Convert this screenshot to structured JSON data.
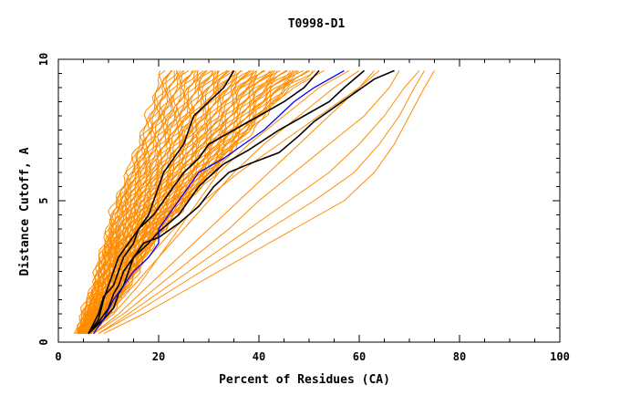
{
  "chart_data": {
    "type": "line",
    "title": "T0998-D1",
    "xlabel": "Percent of Residues (CA)",
    "ylabel": "Distance Cutoff, A",
    "xlim": [
      0,
      100
    ],
    "ylim": [
      0,
      10
    ],
    "x_ticks": [
      "0",
      "20",
      "40",
      "60",
      "80",
      "100"
    ],
    "y_ticks": [
      "0",
      "5",
      "10"
    ],
    "grid": false,
    "legend": "none",
    "colors": {
      "models": "#ff8c00",
      "highlight_black": "#000000",
      "highlight_blue": "#0000ff"
    },
    "band": {
      "color": "#ff8c00",
      "count": 70,
      "left_edge": [
        [
          4,
          0.3
        ],
        [
          5,
          1.0
        ],
        [
          7,
          2.0
        ],
        [
          8.5,
          3.0
        ],
        [
          10,
          4.0
        ],
        [
          11.5,
          5.0
        ],
        [
          14,
          6.0
        ],
        [
          16,
          7.0
        ],
        [
          18,
          8.0
        ],
        [
          19.5,
          9.0
        ],
        [
          21,
          9.6
        ]
      ],
      "right_edge": [
        [
          6,
          0.3
        ],
        [
          10,
          1.0
        ],
        [
          14,
          2.0
        ],
        [
          17,
          3.0
        ],
        [
          21,
          4.0
        ],
        [
          26,
          5.0
        ],
        [
          31,
          6.0
        ],
        [
          36,
          7.0
        ],
        [
          41,
          8.0
        ],
        [
          46,
          9.0
        ],
        [
          51,
          9.6
        ]
      ]
    },
    "series": [
      {
        "color": "#ff8c00",
        "points": [
          [
            6,
            0.3
          ],
          [
            11,
            1
          ],
          [
            16,
            2
          ],
          [
            20,
            3
          ],
          [
            24,
            4
          ],
          [
            28,
            5
          ],
          [
            32,
            6
          ],
          [
            38,
            7
          ],
          [
            45,
            8
          ],
          [
            52,
            9
          ],
          [
            58,
            9.6
          ]
        ]
      },
      {
        "color": "#ff8c00",
        "points": [
          [
            6,
            0.3
          ],
          [
            10,
            1
          ],
          [
            15,
            2
          ],
          [
            20,
            3
          ],
          [
            25,
            4
          ],
          [
            30,
            5
          ],
          [
            35,
            6
          ],
          [
            41,
            7
          ],
          [
            48,
            8
          ],
          [
            55,
            9
          ],
          [
            60,
            9.6
          ]
        ]
      },
      {
        "color": "#ff8c00",
        "points": [
          [
            7,
            0.3
          ],
          [
            12,
            1
          ],
          [
            18,
            2
          ],
          [
            24,
            3
          ],
          [
            30,
            4
          ],
          [
            36,
            5
          ],
          [
            42,
            6
          ],
          [
            48,
            7
          ],
          [
            54,
            8
          ],
          [
            60,
            9
          ],
          [
            63,
            9.6
          ]
        ]
      },
      {
        "color": "#ff8c00",
        "points": [
          [
            7,
            0.3
          ],
          [
            13,
            1
          ],
          [
            20,
            2
          ],
          [
            27,
            3
          ],
          [
            34,
            4
          ],
          [
            40,
            5
          ],
          [
            47,
            6
          ],
          [
            54,
            7
          ],
          [
            61,
            8
          ],
          [
            66,
            9
          ],
          [
            68,
            9.6
          ]
        ]
      },
      {
        "color": "#ff8c00",
        "points": [
          [
            8,
            0.3
          ],
          [
            14,
            1
          ],
          [
            22,
            2
          ],
          [
            30,
            3
          ],
          [
            38,
            4
          ],
          [
            46,
            5
          ],
          [
            54,
            6
          ],
          [
            60,
            7
          ],
          [
            65,
            8
          ],
          [
            69,
            9
          ],
          [
            72,
            9.6
          ]
        ]
      },
      {
        "color": "#ff8c00",
        "points": [
          [
            8,
            0.3
          ],
          [
            15,
            1
          ],
          [
            24,
            2
          ],
          [
            33,
            3
          ],
          [
            42,
            4
          ],
          [
            51,
            5
          ],
          [
            59,
            6
          ],
          [
            64,
            7
          ],
          [
            68,
            8
          ],
          [
            71,
            9
          ],
          [
            73,
            9.6
          ]
        ]
      },
      {
        "color": "#ff8c00",
        "points": [
          [
            9,
            0.3
          ],
          [
            17,
            1
          ],
          [
            27,
            2
          ],
          [
            37,
            3
          ],
          [
            47,
            4
          ],
          [
            57,
            5
          ],
          [
            63,
            6
          ],
          [
            67,
            7
          ],
          [
            70,
            8
          ],
          [
            73,
            9
          ],
          [
            75,
            9.6
          ]
        ]
      },
      {
        "color": "#ff8c00",
        "points": [
          [
            6,
            0.3
          ],
          [
            9,
            1
          ],
          [
            13,
            2
          ],
          [
            17,
            3
          ],
          [
            21,
            4
          ],
          [
            25,
            5
          ],
          [
            30,
            6
          ],
          [
            35,
            7
          ],
          [
            40,
            8
          ],
          [
            47,
            9
          ],
          [
            53,
            9.6
          ]
        ]
      },
      {
        "color": "#ff8c00",
        "points": [
          [
            5,
            0.3
          ],
          [
            9,
            1
          ],
          [
            13,
            2
          ],
          [
            18,
            3
          ],
          [
            23,
            4
          ],
          [
            29,
            5
          ],
          [
            36,
            6
          ],
          [
            44,
            7
          ],
          [
            52,
            8
          ],
          [
            60,
            9
          ],
          [
            64,
            9.6
          ]
        ]
      },
      {
        "color": "#000000",
        "points": [
          [
            6,
            0.3
          ],
          [
            8,
            1
          ],
          [
            9,
            1.6
          ],
          [
            11,
            2
          ],
          [
            12,
            2.5
          ],
          [
            13,
            3
          ],
          [
            15,
            3.5
          ],
          [
            16,
            4
          ],
          [
            18,
            4.5
          ],
          [
            19,
            5
          ],
          [
            21,
            6
          ],
          [
            23,
            6.5
          ],
          [
            25,
            7
          ],
          [
            26,
            7.5
          ],
          [
            27,
            8
          ],
          [
            30,
            8.5
          ],
          [
            33,
            9
          ],
          [
            35,
            9.6
          ]
        ]
      },
      {
        "color": "#000000",
        "points": [
          [
            6,
            0.3
          ],
          [
            8,
            0.8
          ],
          [
            9,
            1.5
          ],
          [
            10,
            2
          ],
          [
            11,
            2.5
          ],
          [
            12,
            3
          ],
          [
            14,
            3.5
          ],
          [
            16,
            4
          ],
          [
            19,
            4.5
          ],
          [
            21,
            5
          ],
          [
            23,
            5.5
          ],
          [
            25,
            6
          ],
          [
            28,
            6.5
          ],
          [
            30,
            7
          ],
          [
            35,
            7.5
          ],
          [
            40,
            8
          ],
          [
            45,
            8.5
          ],
          [
            49,
            9
          ],
          [
            52,
            9.6
          ]
        ]
      },
      {
        "color": "#000000",
        "points": [
          [
            6,
            0.3
          ],
          [
            8,
            0.7
          ],
          [
            10,
            1.2
          ],
          [
            11,
            1.7
          ],
          [
            12,
            2
          ],
          [
            13,
            2.5
          ],
          [
            15,
            3
          ],
          [
            18,
            3.5
          ],
          [
            20,
            3.9
          ],
          [
            24,
            4.5
          ],
          [
            26,
            5
          ],
          [
            28,
            5.5
          ],
          [
            31,
            6
          ],
          [
            33,
            6.3
          ],
          [
            38,
            6.8
          ],
          [
            44,
            7.5
          ],
          [
            49,
            8
          ],
          [
            54,
            8.5
          ],
          [
            57,
            9
          ],
          [
            61,
            9.6
          ]
        ]
      },
      {
        "color": "#000000",
        "points": [
          [
            6,
            0.3
          ],
          [
            9,
            0.8
          ],
          [
            11,
            1.2
          ],
          [
            12,
            1.7
          ],
          [
            13,
            2
          ],
          [
            14,
            2.5
          ],
          [
            15,
            3
          ],
          [
            17,
            3.5
          ],
          [
            20,
            3.7
          ],
          [
            24,
            4.2
          ],
          [
            28,
            4.8
          ],
          [
            31,
            5.5
          ],
          [
            34,
            6
          ],
          [
            38,
            6.3
          ],
          [
            44,
            6.7
          ],
          [
            48,
            7.3
          ],
          [
            51,
            7.8
          ],
          [
            55,
            8.3
          ],
          [
            59,
            8.8
          ],
          [
            63,
            9.3
          ],
          [
            67,
            9.6
          ]
        ]
      },
      {
        "color": "#0000ff",
        "points": [
          [
            7,
            0.3
          ],
          [
            9,
            0.8
          ],
          [
            11,
            1.5
          ],
          [
            13,
            2
          ],
          [
            15,
            2.5
          ],
          [
            18,
            3
          ],
          [
            20,
            3.5
          ],
          [
            20,
            4
          ],
          [
            22,
            4.5
          ],
          [
            24,
            5
          ],
          [
            26,
            5.5
          ],
          [
            28,
            6
          ],
          [
            33,
            6.5
          ],
          [
            37,
            7
          ],
          [
            41,
            7.5
          ],
          [
            44,
            8
          ],
          [
            47,
            8.5
          ],
          [
            51,
            9
          ],
          [
            57,
            9.6
          ]
        ]
      }
    ]
  }
}
